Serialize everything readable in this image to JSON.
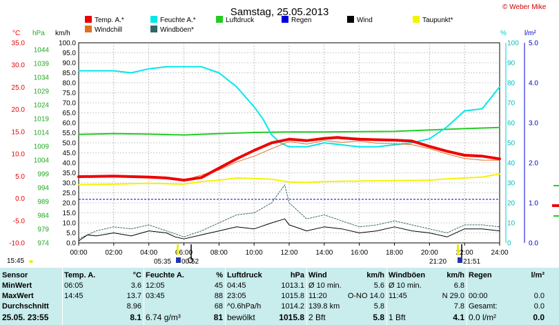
{
  "header": {
    "title": "Samstag, 25.05.2013",
    "copyright": "© Weber Mike",
    "time_left": "15:45"
  },
  "colors": {
    "temp": "#ee0000",
    "humidity": "#00e8ea",
    "pressure": "#22cc22",
    "rain": "#0000dd",
    "wind": "#000000",
    "dewpoint": "#f4f400",
    "windchill": "#e07020",
    "gust": "#336666",
    "background": "#c9ecec"
  },
  "legend": [
    {
      "label": "Temp. A.*",
      "color": "#ee0000"
    },
    {
      "label": "Feuchte A.*",
      "color": "#00e8ea"
    },
    {
      "label": "Luftdruck",
      "color": "#22cc22"
    },
    {
      "label": "Regen",
      "color": "#0000dd"
    },
    {
      "label": "Wind",
      "color": "#000000"
    },
    {
      "label": "Taupunkt*",
      "color": "#f4f400"
    },
    {
      "label": "Windchill",
      "color": "#e07020"
    },
    {
      "label": "Windböen*",
      "color": "#336666"
    }
  ],
  "axis_units": {
    "temp": "°C",
    "pressure": "hPa",
    "wind": "km/h",
    "humidity": "%",
    "rain": "l/m²"
  },
  "sun": {
    "sunrise": "05:35",
    "sunset": "21:20",
    "moonrise": "00:52",
    "moonset": "21:51"
  },
  "chart_data": {
    "type": "line",
    "x_ticks": [
      "00:00",
      "02:00",
      "04:00",
      "06:00",
      "08:00",
      "10:00",
      "12:00",
      "14:00",
      "16:00",
      "18:00",
      "20:00",
      "22:00",
      "24:00"
    ],
    "axes": {
      "temp_c": {
        "ticks": [
          "35.0",
          "30.0",
          "25.0",
          "20.0",
          "15.0",
          "10.0",
          "5.0",
          "0.0",
          "-5.0",
          "-10.0"
        ],
        "range": [
          -10,
          35
        ]
      },
      "pressure_hpa": {
        "ticks": [
          "1044",
          "1039",
          "1034",
          "1029",
          "1024",
          "1019",
          "1014",
          "1009",
          "1004",
          "999",
          "994",
          "989",
          "984",
          "979",
          "974"
        ],
        "range": [
          974,
          1046.5
        ]
      },
      "wind_kmh": {
        "ticks": [
          "100.0",
          "95.0",
          "90.0",
          "85.0",
          "80.0",
          "75.0",
          "70.0",
          "65.0",
          "60.0",
          "55.0",
          "50.0",
          "45.0",
          "40.0",
          "35.0",
          "30.0",
          "25.0",
          "20.0",
          "15.0",
          "10.0",
          "5.0",
          "0.0"
        ],
        "range": [
          0,
          100
        ]
      },
      "humidity_pct": {
        "ticks": [
          "100",
          "90",
          "80",
          "70",
          "60",
          "50",
          "40",
          "30",
          "20",
          "10",
          "0"
        ],
        "range": [
          0,
          100
        ]
      },
      "rain_lm2": {
        "ticks": [
          "5.0",
          "4.0",
          "3.0",
          "2.0",
          "1.0",
          "0.0"
        ],
        "range": [
          0,
          5
        ]
      }
    },
    "series": [
      {
        "name": "Temp. A.*",
        "axis": "temp_c",
        "color": "#ee0000",
        "x": [
          0,
          2,
          4,
          5,
          6,
          7,
          8,
          9,
          10,
          11,
          12,
          13,
          14,
          14.75,
          15,
          16,
          17,
          18,
          19,
          20,
          21,
          22,
          23,
          24
        ],
        "y": [
          4.9,
          5.0,
          4.8,
          4.6,
          4.1,
          4.7,
          6.8,
          8.9,
          10.8,
          12.5,
          13.3,
          13.0,
          13.5,
          13.7,
          13.6,
          13.3,
          13.2,
          13.1,
          12.9,
          11.7,
          10.6,
          9.7,
          9.5,
          8.9
        ]
      },
      {
        "name": "Windchill",
        "axis": "temp_c",
        "color": "#e07020",
        "x": [
          0,
          2,
          4,
          6,
          8,
          9,
          10,
          11,
          12,
          13,
          14,
          15,
          16,
          17,
          18,
          19,
          20,
          21,
          22,
          23,
          24
        ],
        "y": [
          4.9,
          4.9,
          4.8,
          4.1,
          6.4,
          8.2,
          9.5,
          11.2,
          12.8,
          12.2,
          13.0,
          12.6,
          12.9,
          12.4,
          12.3,
          12.1,
          11.2,
          10.0,
          9.0,
          8.6,
          8.6
        ]
      },
      {
        "name": "Feuchte A.*",
        "axis": "humidity_pct",
        "color": "#00e8ea",
        "x": [
          0,
          2,
          3,
          4,
          5,
          6,
          7,
          8,
          9,
          10,
          10.5,
          11,
          11.5,
          12,
          13,
          14,
          15,
          16,
          17,
          18,
          19,
          20,
          21,
          22,
          23,
          24
        ],
        "y": [
          86,
          86,
          85,
          87,
          88,
          88,
          88,
          85,
          78,
          68,
          62,
          54,
          50,
          48,
          48,
          50,
          49,
          48,
          48,
          49,
          50,
          52,
          58,
          66,
          67,
          78
        ]
      },
      {
        "name": "Luftdruck",
        "axis": "pressure_hpa",
        "color": "#22cc22",
        "x": [
          0,
          2,
          4,
          6,
          8,
          10,
          12,
          14,
          16,
          18,
          20,
          22,
          24
        ],
        "y": [
          1013.3,
          1013.6,
          1013.4,
          1013.1,
          1013.6,
          1014.0,
          1014.2,
          1014.2,
          1014.3,
          1014.4,
          1014.9,
          1015.4,
          1015.8
        ]
      },
      {
        "name": "Taupunkt*",
        "axis": "temp_c",
        "color": "#f4f400",
        "x": [
          0,
          2,
          4,
          6,
          7,
          8,
          9,
          10,
          11,
          12,
          13,
          14,
          16,
          18,
          20,
          21,
          22,
          23,
          24
        ],
        "y": [
          3.1,
          3.2,
          3.4,
          3.2,
          3.8,
          4.1,
          4.6,
          4.5,
          4.3,
          3.7,
          3.6,
          3.8,
          3.9,
          4.0,
          4.1,
          4.4,
          4.6,
          4.8,
          5.5
        ]
      },
      {
        "name": "Wind",
        "axis": "wind_kmh",
        "color": "#000000",
        "x": [
          0,
          0.5,
          1,
          2,
          3,
          4,
          5,
          5.5,
          6,
          7,
          8,
          9,
          10,
          11,
          11.75,
          12,
          13,
          14,
          15,
          16,
          17,
          18,
          19,
          20,
          21,
          22,
          23,
          24
        ],
        "y": [
          1.0,
          4.0,
          3.5,
          5.0,
          3.5,
          6.0,
          5.0,
          3.0,
          2.0,
          4.0,
          6.0,
          8.0,
          7.0,
          10.0,
          12.0,
          9.0,
          6.0,
          8.0,
          7.0,
          5.0,
          6.0,
          8.0,
          6.0,
          5.0,
          3.0,
          7.0,
          7.0,
          6.0
        ]
      },
      {
        "name": "Windböen*",
        "axis": "wind_kmh",
        "color": "#336666",
        "x": [
          0,
          1,
          2,
          3,
          4,
          5,
          6,
          7,
          8,
          9,
          10,
          11,
          11.75,
          12,
          13,
          14,
          15,
          16,
          17,
          18,
          19,
          20,
          21,
          22,
          23,
          24
        ],
        "y": [
          2.0,
          6.0,
          8.0,
          7.0,
          9.0,
          6.0,
          3.0,
          6.0,
          10.0,
          14.0,
          15.0,
          20.0,
          29.0,
          20.0,
          12.0,
          14.0,
          11.0,
          8.0,
          9.0,
          11.0,
          9.0,
          7.0,
          5.0,
          9.0,
          9.0,
          8.0
        ]
      }
    ],
    "zero_reference_temp": 0.0,
    "grid": true
  },
  "stats": {
    "row_labels": [
      "Sensor",
      "MinWert",
      "MaxWert",
      "Durchschnitt",
      "25.05. 23:55"
    ],
    "columns": [
      {
        "title": "Temp. A.",
        "unit": "°C",
        "rows": [
          [
            "06:05",
            "3.6"
          ],
          [
            "14:45",
            "13.7"
          ],
          [
            "",
            "8.96"
          ],
          [
            "",
            "8.1"
          ]
        ]
      },
      {
        "title": "Feuchte A.",
        "unit": "%",
        "rows": [
          [
            "12:05",
            "45"
          ],
          [
            "03:45",
            "88"
          ],
          [
            "",
            "68"
          ],
          [
            "6.74 g/m³",
            "81"
          ]
        ]
      },
      {
        "title": "Luftdruck",
        "unit": "hPa",
        "rows": [
          [
            "04:45",
            "1013.1"
          ],
          [
            "23:05",
            "1015.8"
          ],
          [
            "^0.6hPa/h",
            "1014.2"
          ],
          [
            "bewölkt",
            "1015.8"
          ]
        ]
      },
      {
        "title": "Wind",
        "unit": "km/h",
        "rows": [
          [
            "Ø 10 min.",
            "5.6"
          ],
          [
            "11:20",
            "O-NO 14.0"
          ],
          [
            "139.8 km",
            "5.8"
          ],
          [
            "2 Bft",
            "5.8"
          ]
        ]
      },
      {
        "title": "Windböen",
        "unit": "km/h",
        "rows": [
          [
            "Ø 10 min.",
            "6.8"
          ],
          [
            "11:45",
            "N 29.0"
          ],
          [
            "",
            "7.8"
          ],
          [
            "1 Bft",
            "4.1"
          ]
        ]
      },
      {
        "title": "Regen",
        "unit": "l/m²",
        "rows": [
          [
            "",
            ""
          ],
          [
            "00:00",
            "0.0"
          ],
          [
            "Gesamt:",
            "0.0"
          ],
          [
            "0.0 l/m²",
            "0.0"
          ]
        ]
      }
    ]
  }
}
